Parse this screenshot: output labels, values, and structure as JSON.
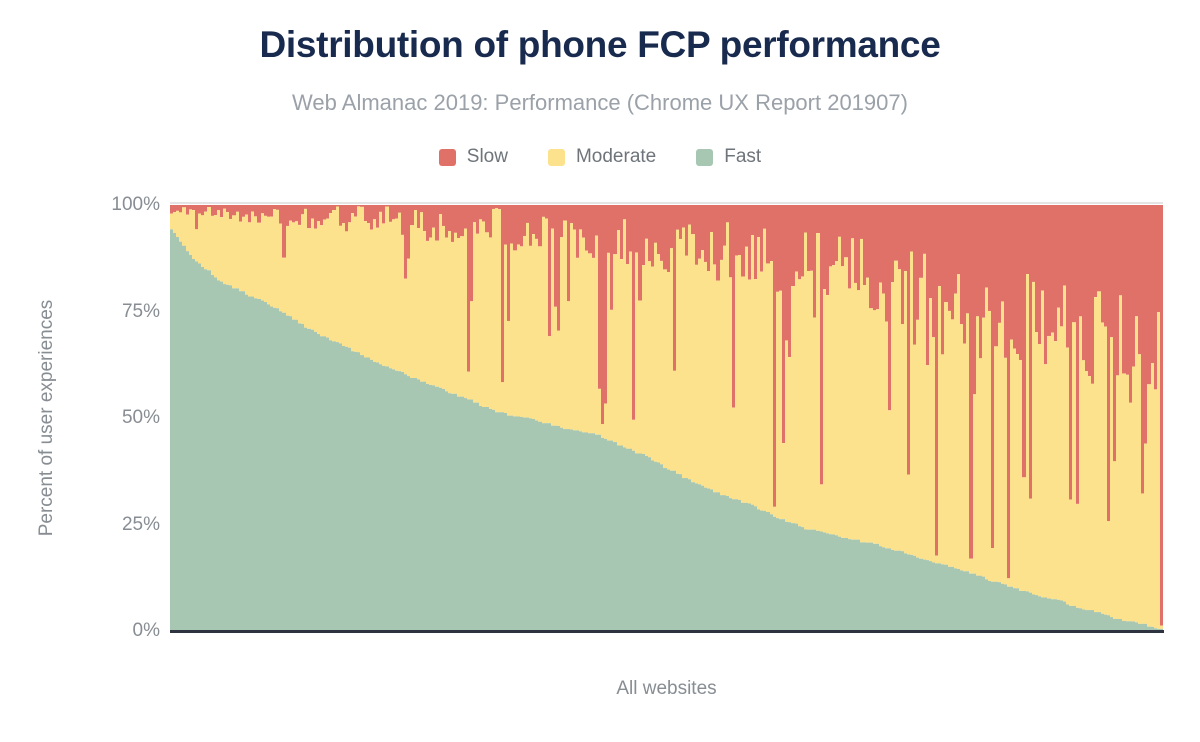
{
  "header": {
    "title": "Distribution of phone FCP performance",
    "subtitle": "Web Almanac 2019: Performance (Chrome UX Report 201907)"
  },
  "chart_data": {
    "type": "bar",
    "variant": "stacked-100-percent-distribution",
    "title": "Distribution of phone FCP performance",
    "subtitle": "Web Almanac 2019: Performance (Chrome UX Report 201907)",
    "xlabel": "All websites",
    "ylabel": "Percent of user experiences",
    "ylim": [
      0,
      100
    ],
    "stack_total": 100,
    "grid": "top-line-only",
    "legend_position": "top-center",
    "y_ticks": [
      {
        "label": "100%",
        "value": 100
      },
      {
        "label": "75%",
        "value": 75
      },
      {
        "label": "50%",
        "value": 50
      },
      {
        "label": "25%",
        "value": 25
      },
      {
        "label": "0%",
        "value": 0
      }
    ],
    "x_tick_labels": [],
    "x_axis_note": "one thin bar per website, sorted by descending Fast share; individual x tick labels not shown",
    "num_bars": 318,
    "series": [
      {
        "name": "Slow",
        "color": "#e07169",
        "stack_position": "top"
      },
      {
        "name": "Moderate",
        "color": "#fce28d",
        "stack_position": "middle"
      },
      {
        "name": "Fast",
        "color": "#a7c7b3",
        "stack_position": "bottom"
      }
    ],
    "fast_share_curve": [
      [
        0.0,
        94.5
      ],
      [
        0.02,
        88.0
      ],
      [
        0.05,
        82.0
      ],
      [
        0.1,
        76.5
      ],
      [
        0.15,
        69.5
      ],
      [
        0.2,
        64.0
      ],
      [
        0.26,
        58.0
      ],
      [
        0.33,
        51.5
      ],
      [
        0.4,
        47.5
      ],
      [
        0.43,
        46.0
      ],
      [
        0.48,
        41.0
      ],
      [
        0.53,
        34.5
      ],
      [
        0.58,
        30.0
      ],
      [
        0.64,
        24.0
      ],
      [
        0.7,
        21.0
      ],
      [
        0.74,
        18.5
      ],
      [
        0.79,
        15.0
      ],
      [
        0.84,
        11.0
      ],
      [
        0.89,
        7.5
      ],
      [
        0.94,
        4.0
      ],
      [
        0.97,
        2.0
      ],
      [
        1.0,
        0.6
      ]
    ],
    "fast_plus_moderate_curve": [
      [
        0.0,
        98.6
      ],
      [
        0.15,
        97.0
      ],
      [
        0.33,
        94.5
      ],
      [
        0.5,
        91.0
      ],
      [
        0.65,
        86.0
      ],
      [
        0.8,
        77.0
      ],
      [
        0.9,
        70.0
      ],
      [
        1.0,
        64.0
      ]
    ],
    "noise": {
      "seed": 1337,
      "fast_jitter": 0.35,
      "top_jitter_start": 1.0,
      "top_jitter_end": 13.0,
      "spike_prob_start": 0.07,
      "spike_prob_end": 0.32,
      "spike_power": 1.5
    },
    "colors": {
      "axis_line": "#2d3440",
      "top_gridline": "#e4e4e4",
      "title_text": "#182a4e",
      "subtitle_text": "#9ba1a8",
      "axis_text": "#878d93",
      "legend_text": "#6e747a"
    }
  }
}
